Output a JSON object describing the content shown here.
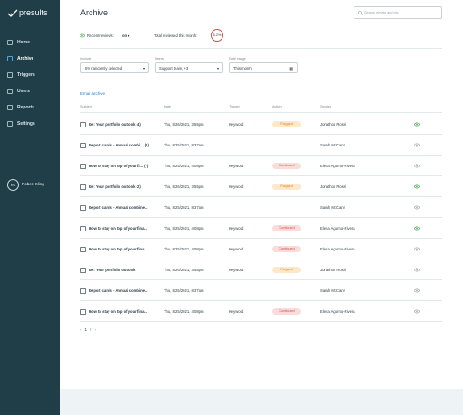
{
  "sidebar": {
    "logo": "presults",
    "nav": [
      {
        "label": "Home"
      },
      {
        "label": "Archive",
        "active": true
      },
      {
        "label": "Triggers"
      },
      {
        "label": "Users"
      },
      {
        "label": "Reports"
      },
      {
        "label": "Settings"
      }
    ],
    "user": {
      "initials": "RK",
      "name": "Robert Kling"
    }
  },
  "header": {
    "title": "Archive",
    "search_placeholder": "Search emails and ids"
  },
  "summary": {
    "recent_label": "Recent reviews:",
    "recent_value": "on",
    "total_label": "Total reviewed this month:",
    "total_value": "6.2%"
  },
  "filters": [
    {
      "label": "Include",
      "value": "5% randomly selected"
    },
    {
      "label": "Users",
      "value": "Support team, +3"
    },
    {
      "label": "Date range",
      "value": "This month"
    }
  ],
  "archive_link": "Email archive",
  "table": {
    "columns": [
      "Subject",
      "Date",
      "Trigger",
      "Action",
      "Sender"
    ],
    "rows": [
      {
        "subject": "Re: Your portfolio outlook (4)",
        "date": "Thu, 8/26/2021, 3:55pm",
        "trigger": "Keyword",
        "action": "Flagged",
        "action_color": "#e08a2c",
        "action_bg": "#fde8cc",
        "sender": "Jonathon Rossi",
        "eye_color": "#3aa84a"
      },
      {
        "subject": "Report cards - Annual combi... (1)",
        "date": "Thu, 8/25/2021, 8:37am",
        "sender": "Sarah McCann",
        "eye_color": "#9aa5ab"
      },
      {
        "subject": "How to stay on top of your fi... (7)",
        "date": "Thu, 8/25/2021, 4:08pm",
        "trigger": "Keyword",
        "action": "Continued",
        "action_color": "#d0504a",
        "action_bg": "#fbdcdb",
        "sender": "Elena Agurno-Rivera",
        "eye_color": "#9aa5ab"
      },
      {
        "subject": "Re: Your portfolio outlook (2)",
        "date": "Thu, 8/26/2021, 3:55pm",
        "trigger": "Keyword",
        "action": "Flagged",
        "action_color": "#e08a2c",
        "action_bg": "#fde8cc",
        "sender": "Jonathon Rossi",
        "eye_color": "#3aa84a"
      },
      {
        "subject": "Report cards - Annual combine...",
        "date": "Thu, 8/25/2021, 8:37am",
        "sender": "Sarah McCann",
        "eye_color": "#9aa5ab"
      },
      {
        "subject": "How to stay on top of your fina...",
        "date": "Thu, 8/25/2021, 4:08pm",
        "trigger": "Keyword",
        "action": "Continued",
        "action_color": "#d0504a",
        "action_bg": "#fbdcdb",
        "sender": "Elena Agurno-Rivera",
        "eye_color": "#3aa84a"
      },
      {
        "subject": "How to stay on top of your fina...",
        "date": "Thu, 8/25/2021, 4:08pm",
        "trigger": "Keyword",
        "action": "Continued",
        "action_color": "#d0504a",
        "action_bg": "#fbdcdb",
        "sender": "Elena Agurno-Rivera",
        "eye_color": "#9aa5ab"
      },
      {
        "subject": "Re: Your portfolio outlook",
        "date": "Thu, 8/26/2021, 3:55pm",
        "trigger": "Keyword",
        "action": "Flagged",
        "action_color": "#e08a2c",
        "action_bg": "#fde8cc",
        "sender": "Jonathon Rossi",
        "eye_color": "#9aa5ab"
      },
      {
        "subject": "Report cards - Annual combine...",
        "date": "Thu, 8/25/2021, 8:37am",
        "sender": "Sarah McCann",
        "eye_color": "#9aa5ab"
      },
      {
        "subject": "How to stay on top of your fina...",
        "date": "Thu, 8/25/2021, 4:08pm",
        "trigger": "Keyword",
        "action": "Continued",
        "action_color": "#d0504a",
        "action_bg": "#fbdcdb",
        "sender": "Elena Agurno-Rivera",
        "eye_color": "#9aa5ab"
      }
    ]
  },
  "pagination": [
    "‹",
    "1",
    "2",
    "›"
  ]
}
